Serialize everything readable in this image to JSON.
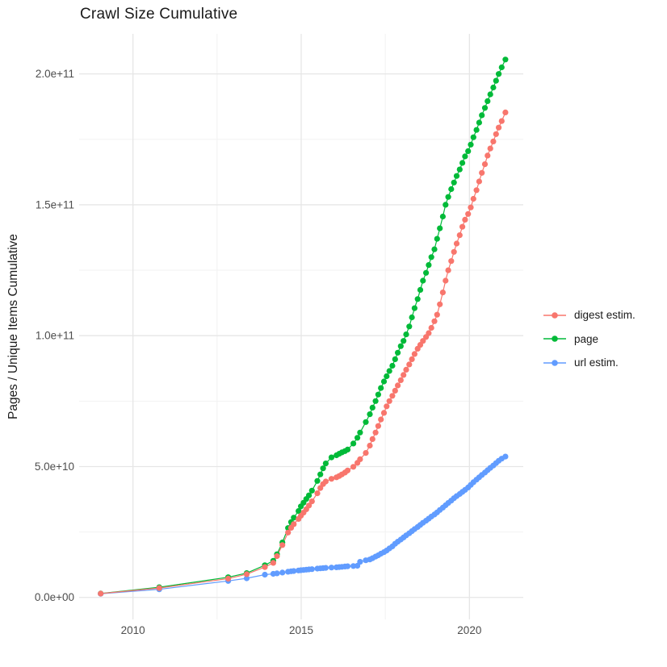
{
  "title": "Crawl Size Cumulative",
  "axes": {
    "y_title": "Pages / Unique Items Cumulative",
    "x_tick_labels": [
      "2010",
      "2015",
      "2020"
    ],
    "y_tick_labels": [
      "0.0e+00",
      "5.0e+10",
      "1.0e+11",
      "1.5e+11",
      "2.0e+11"
    ]
  },
  "legend": {
    "position": "right",
    "items": [
      {
        "label": "digest estim.",
        "color": "#F8766D"
      },
      {
        "label": "page",
        "color": "#00BA38"
      },
      {
        "label": "url estim.",
        "color": "#619CFF"
      }
    ]
  },
  "style": {
    "background": "#FFFFFF",
    "grid_major_color": "#E6E6E6",
    "grid_minor_color": "#F2F2F2",
    "tick_text_color": "#4D4D4D",
    "title_text_color": "#1A1A1A"
  },
  "chart_data": {
    "type": "line",
    "title": "Crawl Size Cumulative",
    "xlabel": "",
    "ylabel": "Pages / Unique Items Cumulative",
    "x_unit": "year (crawl date)",
    "y_unit": "cumulative count, billions (1e9)",
    "xlim": [
      2008.4,
      2021.6
    ],
    "ylim_billions": [
      -8.4,
      215.3
    ],
    "x_major_ticks": [
      2010,
      2015,
      2020
    ],
    "x_minor_ticks": [
      2012.5,
      2017.5
    ],
    "y_major_ticks_billions": [
      0,
      50,
      100,
      150,
      200
    ],
    "y_minor_ticks_billions": [
      25,
      75,
      125,
      175
    ],
    "grid": true,
    "legend_position": "right",
    "x": [
      2009.04,
      2010.78,
      2012.83,
      2013.38,
      2013.92,
      2014.17,
      2014.28,
      2014.44,
      2014.61,
      2014.7,
      2014.78,
      2014.92,
      2014.99,
      2015.07,
      2015.15,
      2015.23,
      2015.32,
      2015.48,
      2015.57,
      2015.65,
      2015.73,
      2015.9,
      2016.05,
      2016.13,
      2016.21,
      2016.3,
      2016.38,
      2016.55,
      2016.67,
      2016.75,
      2016.92,
      2017.04,
      2017.12,
      2017.21,
      2017.29,
      2017.37,
      2017.46,
      2017.54,
      2017.62,
      2017.71,
      2017.79,
      2017.87,
      2017.96,
      2018.04,
      2018.12,
      2018.21,
      2018.29,
      2018.37,
      2018.46,
      2018.54,
      2018.62,
      2018.71,
      2018.79,
      2018.87,
      2018.96,
      2019.04,
      2019.12,
      2019.21,
      2019.29,
      2019.37,
      2019.46,
      2019.54,
      2019.62,
      2019.71,
      2019.79,
      2019.87,
      2019.96,
      2020.04,
      2020.12,
      2020.21,
      2020.29,
      2020.37,
      2020.46,
      2020.54,
      2020.62,
      2020.71,
      2020.79,
      2020.87,
      2020.96,
      2021.07
    ],
    "series": [
      {
        "name": "page",
        "color": "#00BA38",
        "values_billions": [
          1.5,
          3.9,
          7.7,
          9.3,
          12.3,
          14.0,
          16.5,
          21.0,
          26.5,
          28.8,
          30.5,
          33.0,
          34.8,
          36.2,
          37.6,
          39.0,
          40.8,
          44.5,
          47.0,
          49.3,
          51.2,
          53.5,
          54.3,
          54.9,
          55.4,
          55.9,
          56.5,
          58.8,
          61.0,
          63.0,
          67.0,
          70.0,
          72.5,
          75.0,
          77.5,
          80.0,
          82.5,
          84.5,
          86.5,
          88.5,
          91.0,
          93.5,
          96.0,
          98.0,
          100.5,
          103.5,
          107.0,
          110.5,
          114.0,
          117.5,
          121.0,
          124.0,
          127.0,
          130.0,
          133.0,
          137.0,
          141.0,
          145.5,
          150.0,
          153.0,
          156.0,
          158.5,
          161.0,
          163.5,
          166.0,
          168.5,
          170.5,
          173.0,
          175.8,
          178.6,
          181.4,
          184.2,
          187.0,
          189.6,
          192.2,
          194.8,
          197.4,
          200.0,
          202.5,
          205.5
        ]
      },
      {
        "name": "url estim.",
        "color": "#619CFF",
        "values_billions": [
          1.4,
          3.1,
          6.3,
          7.3,
          8.7,
          9.0,
          9.2,
          9.5,
          9.8,
          10.0,
          10.1,
          10.3,
          10.4,
          10.5,
          10.6,
          10.7,
          10.8,
          11.0,
          11.1,
          11.2,
          11.3,
          11.4,
          11.5,
          11.6,
          11.7,
          11.8,
          11.9,
          12.0,
          12.1,
          13.6,
          14.2,
          14.5,
          15.0,
          15.6,
          16.1,
          16.7,
          17.3,
          17.9,
          18.7,
          19.5,
          20.5,
          21.3,
          22.1,
          22.9,
          23.7,
          24.5,
          25.3,
          26.1,
          26.9,
          27.7,
          28.5,
          29.3,
          30.1,
          30.9,
          31.7,
          32.5,
          33.4,
          34.3,
          35.2,
          36.1,
          37.0,
          37.9,
          38.7,
          39.5,
          40.3,
          41.1,
          42.0,
          43.0,
          44.0,
          45.0,
          45.9,
          46.8,
          47.7,
          48.6,
          49.5,
          50.4,
          51.3,
          52.2,
          53.0,
          53.8
        ]
      },
      {
        "name": "digest estim.",
        "color": "#F8766D",
        "values_billions": [
          1.45,
          3.6,
          7.2,
          8.9,
          11.6,
          13.2,
          15.8,
          20.0,
          24.8,
          26.6,
          28.0,
          30.0,
          31.2,
          32.4,
          33.7,
          35.1,
          36.7,
          39.8,
          41.8,
          43.3,
          44.3,
          45.3,
          45.9,
          46.4,
          47.0,
          47.7,
          48.5,
          49.9,
          51.4,
          52.8,
          55.2,
          58.0,
          60.5,
          63.0,
          65.5,
          68.0,
          70.5,
          73.0,
          75.0,
          77.0,
          79.0,
          81.0,
          83.0,
          85.0,
          87.0,
          89.0,
          91.0,
          93.0,
          95.0,
          96.5,
          98.0,
          99.5,
          101.0,
          103.0,
          105.5,
          108.0,
          112.0,
          116.5,
          121.0,
          125.0,
          128.5,
          132.0,
          135.2,
          138.4,
          141.6,
          144.3,
          146.5,
          149.0,
          152.3,
          155.6,
          158.9,
          162.2,
          165.5,
          168.8,
          171.5,
          174.2,
          177.0,
          179.5,
          182.0,
          185.3
        ]
      }
    ]
  }
}
